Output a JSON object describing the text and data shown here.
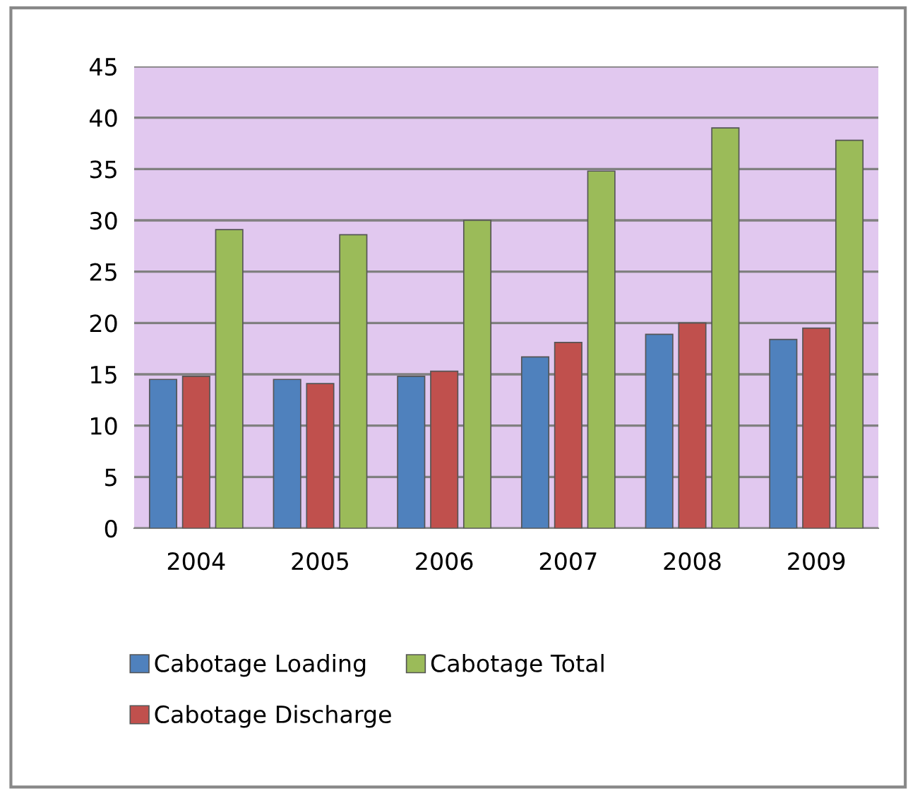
{
  "chart_data": {
    "type": "bar",
    "categories": [
      "2004",
      "2005",
      "2006",
      "2007",
      "2008",
      "2009"
    ],
    "series": [
      {
        "name": "Cabotage Loading",
        "color": "#4f81bd",
        "values": [
          14.5,
          14.5,
          14.8,
          16.7,
          18.9,
          18.4
        ]
      },
      {
        "name": "Cabotage Discharge",
        "color": "#c0504d",
        "values": [
          14.8,
          14.1,
          15.3,
          18.1,
          20.0,
          19.5
        ]
      },
      {
        "name": "Cabotage Total",
        "color": "#9bbb59",
        "values": [
          29.1,
          28.6,
          30.0,
          34.8,
          39.0,
          37.8
        ]
      }
    ],
    "ylim": [
      0,
      45
    ],
    "yticks": [
      0,
      5,
      10,
      15,
      20,
      25,
      30,
      35,
      40,
      45
    ],
    "grid": "y",
    "legend": "bottom"
  }
}
